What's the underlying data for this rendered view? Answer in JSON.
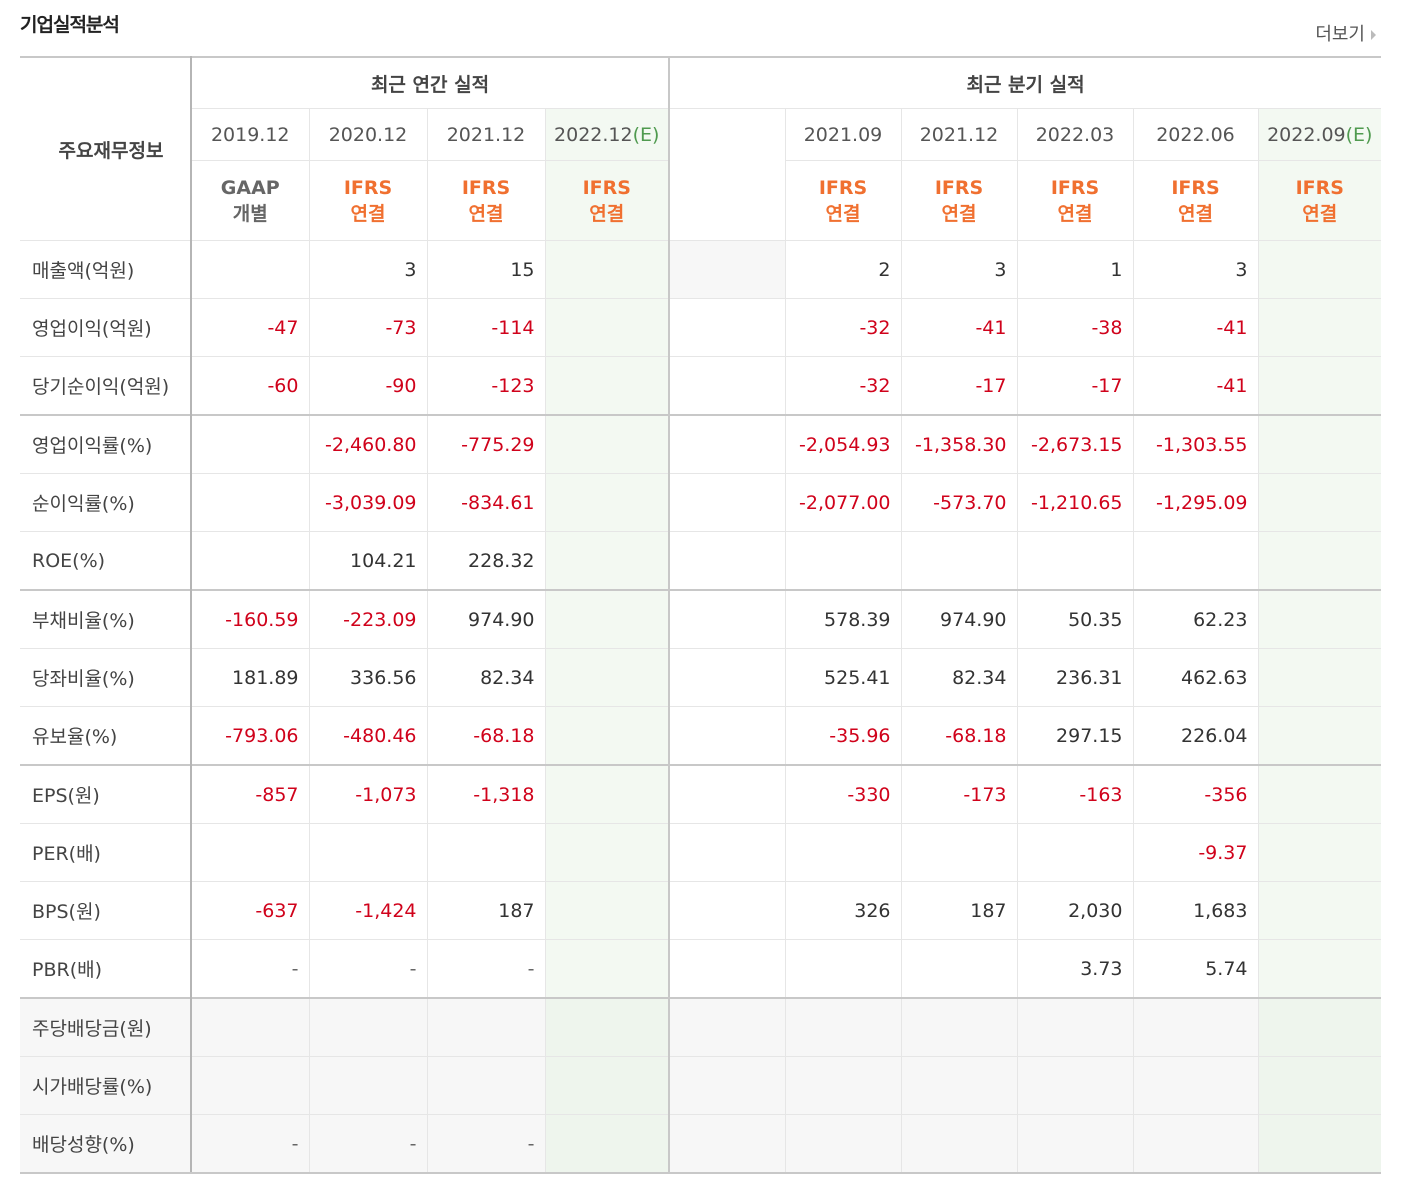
{
  "header": {
    "title": "기업실적분석",
    "more": "더보기"
  },
  "table": {
    "label_header": "주요재무정보",
    "groups": [
      "최근 연간 실적",
      "최근 분기 실적"
    ],
    "columns": [
      {
        "period": "2019.12",
        "standard": "GAAP",
        "consolidation": "개별"
      },
      {
        "period": "2020.12",
        "standard": "IFRS",
        "consolidation": "연결"
      },
      {
        "period": "2021.12",
        "standard": "IFRS",
        "consolidation": "연결"
      },
      {
        "period": "2022.12",
        "estimate": "(E)",
        "standard": "IFRS",
        "consolidation": "연결"
      },
      {
        "period": "2021.09",
        "standard": "IFRS",
        "consolidation": "연결"
      },
      {
        "period": "2021.12",
        "standard": "IFRS",
        "consolidation": "연결"
      },
      {
        "period": "2022.03",
        "standard": "IFRS",
        "consolidation": "연결"
      },
      {
        "period": "2022.06",
        "standard": "IFRS",
        "consolidation": "연결"
      },
      {
        "period": "2022.09",
        "estimate": "(E)",
        "standard": "IFRS",
        "consolidation": "연결"
      }
    ],
    "rows": [
      {
        "label": "매출액(억원)",
        "values": [
          null,
          "3",
          "15",
          null,
          "2",
          "3",
          "1",
          "3",
          null
        ]
      },
      {
        "label": "영업이익(억원)",
        "values": [
          "-47",
          "-73",
          "-114",
          null,
          "-32",
          "-41",
          "-38",
          "-41",
          null
        ]
      },
      {
        "label": "당기순이익(억원)",
        "values": [
          "-60",
          "-90",
          "-123",
          null,
          "-32",
          "-17",
          "-17",
          "-41",
          null
        ]
      },
      {
        "label": "영업이익률(%)",
        "values": [
          null,
          "-2,460.80",
          "-775.29",
          null,
          "-2,054.93",
          "-1,358.30",
          "-2,673.15",
          "-1,303.55",
          null
        ]
      },
      {
        "label": "순이익률(%)",
        "values": [
          null,
          "-3,039.09",
          "-834.61",
          null,
          "-2,077.00",
          "-573.70",
          "-1,210.65",
          "-1,295.09",
          null
        ]
      },
      {
        "label": "ROE(%)",
        "values": [
          null,
          "104.21",
          "228.32",
          null,
          null,
          null,
          null,
          null,
          null
        ]
      },
      {
        "label": "부채비율(%)",
        "values": [
          "-160.59",
          "-223.09",
          "974.90",
          null,
          "578.39",
          "974.90",
          "50.35",
          "62.23",
          null
        ]
      },
      {
        "label": "당좌비율(%)",
        "values": [
          "181.89",
          "336.56",
          "82.34",
          null,
          "525.41",
          "82.34",
          "236.31",
          "462.63",
          null
        ]
      },
      {
        "label": "유보율(%)",
        "values": [
          "-793.06",
          "-480.46",
          "-68.18",
          null,
          "-35.96",
          "-68.18",
          "297.15",
          "226.04",
          null
        ]
      },
      {
        "label": "EPS(원)",
        "values": [
          "-857",
          "-1,073",
          "-1,318",
          null,
          "-330",
          "-173",
          "-163",
          "-356",
          null
        ]
      },
      {
        "label": "PER(배)",
        "values": [
          null,
          null,
          null,
          null,
          null,
          null,
          null,
          "-9.37",
          null
        ]
      },
      {
        "label": "BPS(원)",
        "values": [
          "-637",
          "-1,424",
          "187",
          null,
          "326",
          "187",
          "2,030",
          "1,683",
          null
        ]
      },
      {
        "label": "PBR(배)",
        "values": [
          "-",
          "-",
          "-",
          null,
          null,
          null,
          "3.73",
          "5.74",
          null
        ]
      },
      {
        "label": "주당배당금(원)",
        "values": [
          null,
          null,
          null,
          null,
          null,
          null,
          null,
          null,
          null
        ]
      },
      {
        "label": "시가배당률(%)",
        "values": [
          null,
          null,
          null,
          null,
          null,
          null,
          null,
          null,
          null
        ]
      },
      {
        "label": "배당성향(%)",
        "values": [
          "-",
          "-",
          "-",
          null,
          null,
          null,
          null,
          null,
          null
        ]
      }
    ]
  }
}
